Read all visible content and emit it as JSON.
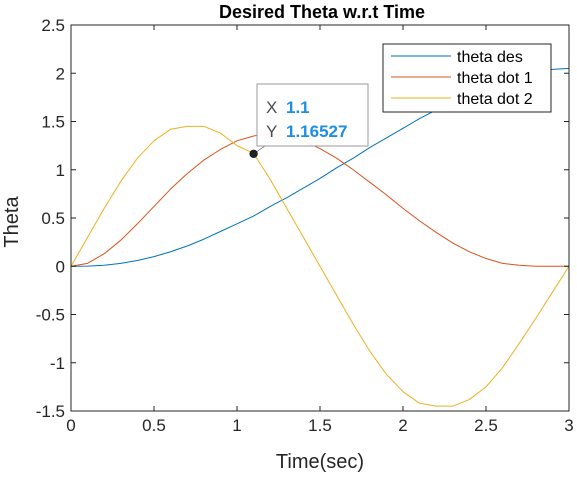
{
  "chart_data": {
    "type": "line",
    "title": "Desired Theta w.r.t Time",
    "xlabel": "Time(sec)",
    "ylabel": "Theta",
    "xlim": [
      0,
      3
    ],
    "ylim": [
      -1.5,
      2.5
    ],
    "xticks": [
      0,
      0.5,
      1,
      1.5,
      2,
      2.5,
      3
    ],
    "xtick_labels": [
      "0",
      "0.5",
      "1",
      "1.5",
      "2",
      "2.5",
      "3"
    ],
    "yticks": [
      -1.5,
      -1,
      -0.5,
      0,
      0.5,
      1,
      1.5,
      2,
      2.5
    ],
    "ytick_labels": [
      "-1.5",
      "-1",
      "-0.5",
      "0",
      "0.5",
      "1",
      "1.5",
      "2",
      "2.5"
    ],
    "grid": false,
    "legend_position": "top-right",
    "series": [
      {
        "name": "theta des",
        "color": "#0072BD",
        "x": [
          0,
          0.1,
          0.2,
          0.3,
          0.4,
          0.5,
          0.6,
          0.7,
          0.8,
          0.9,
          1.0,
          1.1,
          1.2,
          1.3,
          1.4,
          1.5,
          1.6,
          1.7,
          1.8,
          1.9,
          2.0,
          2.1,
          2.2,
          2.3,
          2.4,
          2.5,
          2.6,
          2.7,
          2.8,
          2.9,
          3.0
        ],
        "y": [
          0,
          0.001,
          0.01,
          0.03,
          0.06,
          0.1,
          0.15,
          0.21,
          0.28,
          0.36,
          0.44,
          0.52,
          0.62,
          0.71,
          0.81,
          0.91,
          1.02,
          1.12,
          1.23,
          1.33,
          1.43,
          1.53,
          1.62,
          1.71,
          1.79,
          1.86,
          1.92,
          1.97,
          2.01,
          2.04,
          2.05
        ]
      },
      {
        "name": "theta dot 1",
        "color": "#D95319",
        "x": [
          0,
          0.1,
          0.2,
          0.3,
          0.4,
          0.5,
          0.6,
          0.7,
          0.8,
          0.9,
          1.0,
          1.1,
          1.2,
          1.3,
          1.4,
          1.5,
          1.6,
          1.7,
          1.8,
          1.9,
          2.0,
          2.1,
          2.2,
          2.3,
          2.4,
          2.5,
          2.6,
          2.7,
          2.8,
          2.9,
          3.0
        ],
        "y": [
          0,
          0.03,
          0.13,
          0.27,
          0.44,
          0.62,
          0.8,
          0.96,
          1.1,
          1.21,
          1.3,
          1.35,
          1.37,
          1.35,
          1.3,
          1.22,
          1.12,
          1.0,
          0.87,
          0.74,
          0.6,
          0.47,
          0.35,
          0.24,
          0.15,
          0.08,
          0.03,
          0.01,
          0.0,
          0.0,
          0.0
        ]
      },
      {
        "name": "theta dot 2",
        "color": "#EDB120",
        "x": [
          0,
          0.1,
          0.2,
          0.3,
          0.4,
          0.5,
          0.6,
          0.7,
          0.8,
          0.9,
          1.0,
          1.1,
          1.2,
          1.3,
          1.4,
          1.5,
          1.6,
          1.7,
          1.8,
          1.9,
          2.0,
          2.1,
          2.2,
          2.3,
          2.4,
          2.5,
          2.6,
          2.7,
          2.8,
          2.9,
          3.0
        ],
        "y": [
          0,
          0.3,
          0.6,
          0.88,
          1.12,
          1.3,
          1.42,
          1.45,
          1.45,
          1.38,
          1.25,
          1.17,
          0.9,
          0.6,
          0.3,
          0.0,
          -0.3,
          -0.6,
          -0.88,
          -1.12,
          -1.3,
          -1.42,
          -1.45,
          -1.45,
          -1.38,
          -1.25,
          -1.05,
          -0.8,
          -0.54,
          -0.27,
          0.0
        ]
      }
    ],
    "datatip": {
      "x_value": 1.1,
      "y_value": 1.16527,
      "x_label": "X",
      "y_label": "Y",
      "x_text": "1.1",
      "y_text": "1.16527"
    }
  }
}
